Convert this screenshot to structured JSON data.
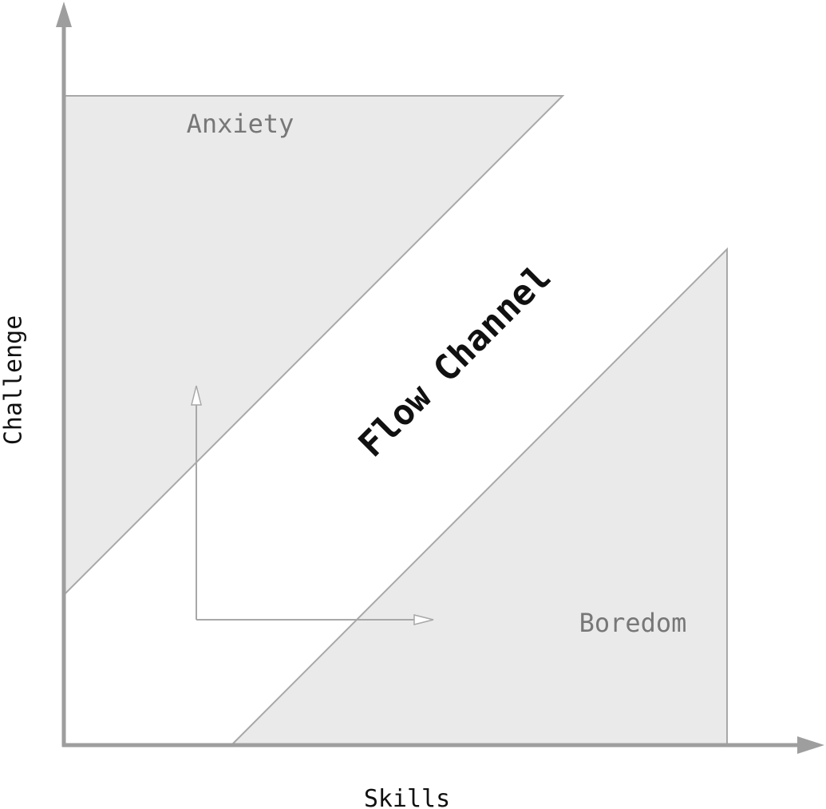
{
  "axes": {
    "x_label": "Skills",
    "y_label": "Challenge"
  },
  "zones": {
    "anxiety": "Anxiety",
    "boredom": "Boredom",
    "flow": "Flow Channel"
  },
  "colors": {
    "zone_fill": "#eaeaea",
    "zone_stroke": "#a8a8a8",
    "axis": "#9e9e9e",
    "zone_text": "#777777",
    "label_text": "#111111"
  }
}
